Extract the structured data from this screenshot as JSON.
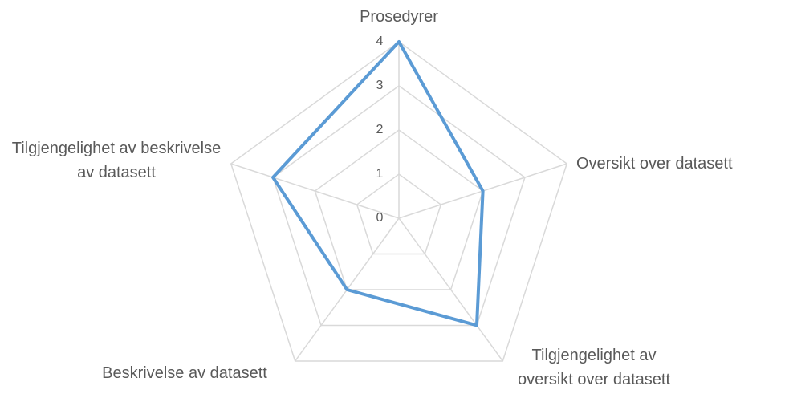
{
  "chart_data": {
    "type": "radar",
    "categories": [
      "Prosedyrer",
      "Oversikt over datasett",
      "Tilgjengelighet av oversikt over datasett",
      "Beskrivelse av datasett",
      "Tilgjengelighet av beskrivelse av datasett"
    ],
    "values": [
      4,
      2,
      3,
      2,
      3
    ],
    "color": "#5b9bd5",
    "ylim": [
      0,
      4
    ],
    "yticks": [
      0,
      1,
      2,
      3,
      4
    ],
    "grid": true
  }
}
